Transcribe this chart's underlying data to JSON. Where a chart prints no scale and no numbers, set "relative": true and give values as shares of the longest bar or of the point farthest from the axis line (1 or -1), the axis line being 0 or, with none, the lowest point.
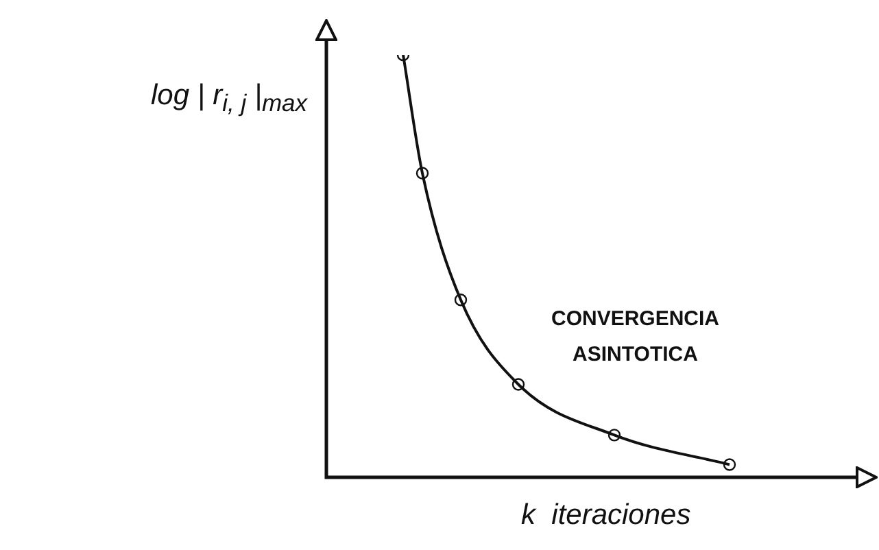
{
  "chart_data": {
    "type": "line",
    "relative": true,
    "xlabel": "k  iteraciones",
    "ylabel": "log | r$_{i, j}$ |$_{max}$",
    "annotations": [
      "CONVERGENCIA\nASINTOTICA"
    ],
    "categories": [
      null,
      null,
      null,
      null,
      null,
      null,
      null,
      null,
      null,
      null,
      null,
      null,
      null,
      null,
      null,
      null,
      null,
      null,
      null,
      null,
      null,
      null,
      null,
      null,
      null,
      null,
      null,
      null,
      null
    ],
    "series": [
      {
        "color": "#111111",
        "values": [
          null,
          null,
          null,
          null,
          1,
          0.72,
          null,
          0.42,
          null,
          null,
          0.22,
          null,
          null,
          null,
          null,
          0.1,
          null,
          null,
          null,
          null,
          null,
          0.03,
          null,
          null,
          null,
          null,
          null,
          null,
          null
        ]
      }
    ],
    "marker": "circle",
    "line_style": "solid",
    "legend": false
  }
}
